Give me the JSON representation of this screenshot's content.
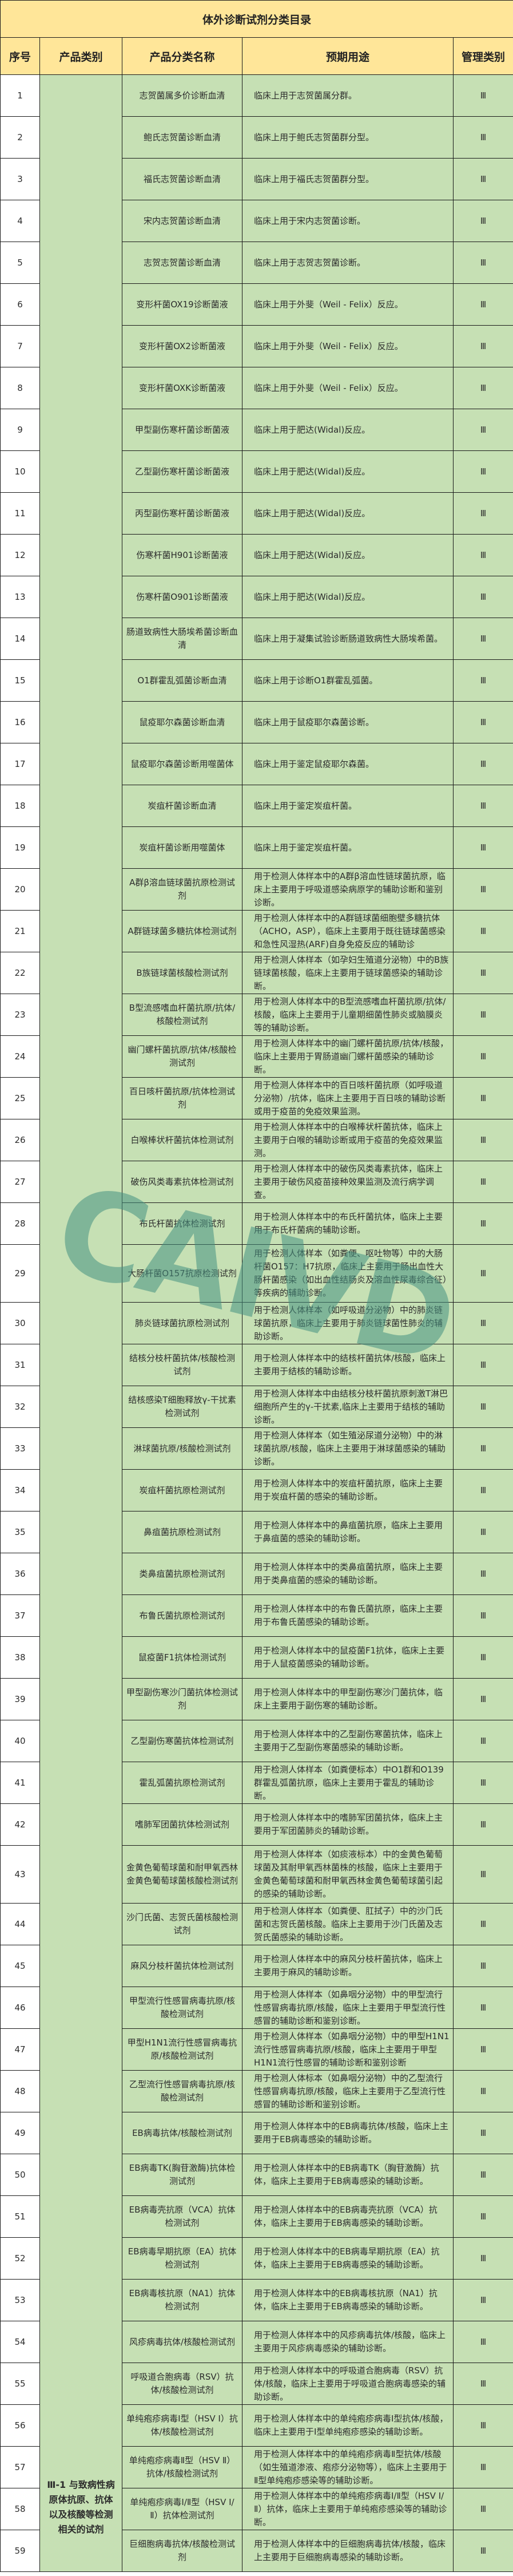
{
  "title": "体外诊断试剂分类目录",
  "headers": {
    "seq": "序号",
    "category": "产品类别",
    "name": "产品分类名称",
    "use": "预期用途",
    "mgmt": "管理类别"
  },
  "category": "Ⅲ-1 与致病性病原体抗原、抗体以及核酸等检测相关的试剂",
  "watermark": "CAIVD",
  "colors": {
    "header_bg": "#FFE699",
    "cell_bg": "#C6E0B4",
    "seq_bg": "#FFFFFF"
  },
  "rows": [
    {
      "seq": "1",
      "name": "志贺菌属多价诊断血清",
      "use": "临床上用于志贺菌属分群。",
      "mgmt": "Ⅲ"
    },
    {
      "seq": "2",
      "name": "鲍氏志贺菌诊断血清",
      "use": "临床上用于鲍氏志贺菌群分型。",
      "mgmt": "Ⅲ"
    },
    {
      "seq": "3",
      "name": "福氏志贺菌诊断血清",
      "use": "临床上用于福氏志贺菌群分型。",
      "mgmt": "Ⅲ"
    },
    {
      "seq": "4",
      "name": "宋内志贺菌诊断血清",
      "use": "临床上用于宋内志贺菌诊断。",
      "mgmt": "Ⅲ"
    },
    {
      "seq": "5",
      "name": "志贺志贺菌诊断血清",
      "use": "临床上用于志贺志贺菌诊断。",
      "mgmt": "Ⅲ"
    },
    {
      "seq": "6",
      "name": "变形杆菌OX19诊断菌液",
      "use": "临床上用于外斐（Weil - Felix）反应。",
      "mgmt": "Ⅲ"
    },
    {
      "seq": "7",
      "name": "变形杆菌OX2诊断菌液",
      "use": "临床上用于外斐（Weil - Felix）反应。",
      "mgmt": "Ⅲ"
    },
    {
      "seq": "8",
      "name": "变形杆菌OXK诊断菌液",
      "use": "临床上用于外斐（Weil - Felix）反应。",
      "mgmt": "Ⅲ"
    },
    {
      "seq": "9",
      "name": "甲型副伤寒杆菌诊断菌液",
      "use": "临床上用于肥达(Widal)反应。",
      "mgmt": "Ⅲ"
    },
    {
      "seq": "10",
      "name": "乙型副伤寒杆菌诊断菌液",
      "use": "临床上用于肥达(Widal)反应。",
      "mgmt": "Ⅲ"
    },
    {
      "seq": "11",
      "name": "丙型副伤寒杆菌诊断菌液",
      "use": "临床上用于肥达(Widal)反应。",
      "mgmt": "Ⅲ"
    },
    {
      "seq": "12",
      "name": "伤寒杆菌H901诊断菌液",
      "use": "临床上用于肥达(Widal)反应。",
      "mgmt": "Ⅲ"
    },
    {
      "seq": "13",
      "name": "伤寒杆菌O901诊断菌液",
      "use": "临床上用于肥达(Widal)反应。",
      "mgmt": "Ⅲ"
    },
    {
      "seq": "14",
      "name": "肠道致病性大肠埃希菌诊断血清",
      "use": "临床上用于凝集试验诊断肠道致病性大肠埃希菌。",
      "mgmt": "Ⅲ"
    },
    {
      "seq": "15",
      "name": "O1群霍乱弧菌诊断血清",
      "use": "临床上用于诊断O1群霍乱弧菌。",
      "mgmt": "Ⅲ"
    },
    {
      "seq": "16",
      "name": "鼠疫耶尔森菌诊断血清",
      "use": "临床上用于鼠疫耶尔森菌诊断。",
      "mgmt": "Ⅲ"
    },
    {
      "seq": "17",
      "name": "鼠疫耶尔森菌诊断用噬菌体",
      "use": "临床上用于鉴定鼠疫耶尔森菌。",
      "mgmt": "Ⅲ"
    },
    {
      "seq": "18",
      "name": "炭疽杆菌诊断血清",
      "use": "临床上用于鉴定炭疽杆菌。",
      "mgmt": "Ⅲ"
    },
    {
      "seq": "19",
      "name": "炭疽杆菌诊断用噬菌体",
      "use": "临床上用于鉴定炭疽杆菌。",
      "mgmt": "Ⅲ"
    },
    {
      "seq": "20",
      "name": "A群β溶血链球菌抗原检测试剂",
      "use": "用于检测人体样本中的A群β溶血性链球菌抗原，临床上主要用于呼吸道感染病原学的辅助诊断和鉴别诊断。",
      "mgmt": "Ⅲ"
    },
    {
      "seq": "21",
      "name": "A群链球菌多糖抗体检测试剂",
      "use": "用于检测人体样本中的A群链球菌细胞壁多糖抗体（ACHO，ASP），临床上主要用于既往链球菌感染和急性风湿热(ARF)自身免疫反应的辅助诊",
      "mgmt": "Ⅲ"
    },
    {
      "seq": "22",
      "name": "B族链球菌核酸检测试剂",
      "use": "用于检测人体样本（如孕妇生殖道分泌物）中的B族链球菌核酸，临床上主要用于链球菌感染的辅助诊断。",
      "mgmt": "Ⅲ"
    },
    {
      "seq": "23",
      "name": "B型流感嗜血杆菌抗原/抗体/核酸检测试剂",
      "use": "用于检测人体样本中的B型流感嗜血杆菌抗原/抗体/核酸，临床上主要用于儿童期细菌性肺炎或脑膜炎等的辅助诊断。",
      "mgmt": "Ⅲ"
    },
    {
      "seq": "24",
      "name": "幽门螺杆菌抗原/抗体/核酸检测试剂",
      "use": "用于检测人体样本中的幽门螺杆菌抗原/抗体/核酸，临床上主要用于胃肠道幽门螺杆菌感染的辅助诊断。",
      "mgmt": "Ⅲ"
    },
    {
      "seq": "25",
      "name": "百日咳杆菌抗原/抗体检测试剂",
      "use": "用于检测人体样本中的百日咳杆菌抗原（如呼吸道分泌物）/抗体，临床上主要用于百日咳的辅助诊断或用于疫苗的免疫效果监测。",
      "mgmt": "Ⅲ"
    },
    {
      "seq": "26",
      "name": "白喉棒状杆菌抗体检测试剂",
      "use": "用于检测人体样本中的白喉棒状杆菌抗体，临床上主要用于白喉的辅助诊断或用于疫苗的免疫效果监测。",
      "mgmt": "Ⅲ"
    },
    {
      "seq": "27",
      "name": "破伤风类毒素抗体检测试剂",
      "use": "用于检测人体样本中的破伤风类毒素抗体，临床上主要用于破伤风疫苗接种效果监测及流行病学调查。",
      "mgmt": "Ⅲ"
    },
    {
      "seq": "28",
      "name": "布氏杆菌抗体检测试剂",
      "use": "用于检测人体样本中的布氏杆菌抗体，临床上主要用于布氏杆菌病的辅助诊断。",
      "mgmt": "Ⅲ"
    },
    {
      "seq": "29",
      "name": "大肠杆菌O157抗原检测试剂",
      "use": "用于检测人体样本（如粪便、呕吐物等）中的大肠杆菌O157：H7抗原，临床上主要用于肠出血性大肠杆菌感染（如出血性结肠炎及溶血性尿毒综合征）等疾病的辅助诊断。",
      "mgmt": "Ⅲ"
    },
    {
      "seq": "30",
      "name": "肺炎链球菌抗原检测试剂",
      "use": "用于检测人体样本（如呼吸道分泌物）中的肺炎链球菌抗原，临床上主要用于肺炎链球菌性肺炎的辅助诊断。",
      "mgmt": "Ⅲ"
    },
    {
      "seq": "31",
      "name": "结核分枝杆菌抗体/核酸检测试剂",
      "use": "用于检测人体样本中的结核杆菌抗体/核酸，临床上主要用于结核的辅助诊断。",
      "mgmt": "Ⅲ"
    },
    {
      "seq": "32",
      "name": "结核感染T细胞释放γ-干扰素检测试剂",
      "use": "用于检测人体样本中由结核分枝杆菌抗原刺激T淋巴细胞所产生的γ-干扰素,临床上主要用于结核的辅助诊断。",
      "mgmt": "Ⅲ"
    },
    {
      "seq": "33",
      "name": "淋球菌抗原/核酸检测试剂",
      "use": "用于检测人体样本（如生殖泌尿道分泌物）中的淋球菌抗原/核酸，临床上主要用于淋球菌感染的辅助诊断。",
      "mgmt": "Ⅲ"
    },
    {
      "seq": "34",
      "name": "炭疽杆菌抗原检测试剂",
      "use": "用于检测人体样本中的炭疽杆菌抗原，临床上主要用于炭疽杆菌的感染的辅助诊断。",
      "mgmt": "Ⅲ"
    },
    {
      "seq": "35",
      "name": "鼻疽菌抗原检测试剂",
      "use": "用于检测人体样本中的鼻疽菌抗原，临床上主要用于鼻疽菌的感染的辅助诊断。",
      "mgmt": "Ⅲ"
    },
    {
      "seq": "36",
      "name": "类鼻疽菌抗原检测试剂",
      "use": "用于检测人体样本中的类鼻疽菌抗原，临床上主要用于类鼻疽菌的感染的辅助诊断。",
      "mgmt": "Ⅲ"
    },
    {
      "seq": "37",
      "name": "布鲁氏菌抗原检测试剂",
      "use": "用于检测人体样本中的布鲁氏菌抗原，临床上主要用于布鲁氏菌感染的辅助诊断。",
      "mgmt": "Ⅲ"
    },
    {
      "seq": "38",
      "name": "鼠疫菌F1抗体检测试剂",
      "use": "用于检测人体样本中的鼠疫菌F1抗体，临床上主要用于人鼠疫菌感染的辅助诊断。",
      "mgmt": "Ⅲ"
    },
    {
      "seq": "39",
      "name": "甲型副伤寒沙门菌抗体检测试剂",
      "use": "用于检测人体样本中的甲型副伤寒沙门菌抗体，临床上主要用于副伤寒的辅助诊断。",
      "mgmt": "Ⅲ"
    },
    {
      "seq": "40",
      "name": "乙型副伤寒菌抗体检测试剂",
      "use": "用于检测人体样本中的乙型副伤寒菌抗体，临床上主要用于乙型副伤寒菌感染的辅助诊断。",
      "mgmt": "Ⅲ"
    },
    {
      "seq": "41",
      "name": "霍乱弧菌抗原检测试剂",
      "use": "用于检测人体样本（如粪便标本）中O1群和O139群霍乱弧菌抗原，临床上主要用于霍乱的辅助诊断。",
      "mgmt": "Ⅲ"
    },
    {
      "seq": "42",
      "name": "嗜肺军团菌抗体检测试剂",
      "use": "用于检测人体样本中的嗜肺军团菌抗体，临床上主要用于军团菌肺炎的辅助诊断。",
      "mgmt": "Ⅲ"
    },
    {
      "seq": "43",
      "name": "金黄色葡萄球菌和耐甲氧西林金黄色葡萄球菌核酸检测试剂",
      "use": "用于检测人体样本（如痰液标本）中的金黄色葡萄球菌及其耐甲氧西林菌株的核酸，临床上主要用于金黄色葡萄球菌和耐甲氧西林金黄色葡萄球菌引起的感染的辅助诊断。",
      "mgmt": "Ⅲ"
    },
    {
      "seq": "44",
      "name": "沙门氏菌、志贺氏菌核酸检测试剂",
      "use": "用于检测人体样本（如粪便、肛拭子）中的沙门氏菌和志贺氏菌核酸。临床上主要用于沙门氏菌及志贺氏菌感染的辅助诊断。",
      "mgmt": "Ⅲ"
    },
    {
      "seq": "45",
      "name": "麻风分枝杆菌抗体检测试剂",
      "use": "用于检测人体样本中的麻风分枝杆菌抗体，临床上主要用于麻风的辅助诊断。",
      "mgmt": "Ⅲ"
    },
    {
      "seq": "46",
      "name": "甲型流行性感冒病毒抗原/核酸检测试剂",
      "use": "用于检测人体样本（如鼻咽分泌物）中的甲型流行性感冒病毒抗原/核酸，临床上主要用于甲型流行性感冒的辅助诊断和鉴别诊断。",
      "mgmt": "Ⅲ"
    },
    {
      "seq": "47",
      "name": "甲型H1N1流行性感冒病毒抗原/核酸检测试剂",
      "use": "用于检测人体样本（如鼻咽分泌物）中的甲型H1N1流行性感冒病毒抗原/核酸，临床上主要用于甲型H1N1流行性感冒的辅助诊断和鉴别诊断",
      "mgmt": "Ⅲ"
    },
    {
      "seq": "48",
      "name": "乙型流行性感冒病毒抗原/核酸检测试剂",
      "use": "用于检测人体标本（如鼻咽分泌物）中的乙型流行性感冒病毒抗原/核酸，临床上主要用于乙型流行性感冒的辅助诊断和鉴别诊断。",
      "mgmt": "Ⅲ"
    },
    {
      "seq": "49",
      "name": "EB病毒抗体/核酸检测试剂",
      "use": "用于检测人体样本中的EB病毒抗体/核酸，临床上主要用于EB病毒感染的辅助诊断。",
      "mgmt": "Ⅲ"
    },
    {
      "seq": "50",
      "name": "EB病毒TK(胸苷激酶)抗体检测试剂",
      "use": "用于检测人体样本中的EB病毒TK（胸苷激酶）抗体，临床上主要用于EB病毒感染的辅助诊断。",
      "mgmt": "Ⅲ"
    },
    {
      "seq": "51",
      "name": "EB病毒壳抗原（VCA）抗体检测试剂",
      "use": "用于检测人体样本中的EB病毒壳抗原（VCA）抗体，临床上主要用于EB病毒感染的辅助诊断。",
      "mgmt": "Ⅲ"
    },
    {
      "seq": "52",
      "name": "EB病毒早期抗原（EA）抗体检测试剂",
      "use": "用于检测人体样本中的EB病毒早期抗原（EA）抗体，临床上主要用于EB病毒感染的辅助诊断。",
      "mgmt": "Ⅲ"
    },
    {
      "seq": "53",
      "name": "EB病毒核抗原（NA1）抗体检测试剂",
      "use": "用于检测人体样本中的EB病毒核抗原（NA1）抗体，临床上主要用于EB病毒感染的辅助诊断。",
      "mgmt": "Ⅲ"
    },
    {
      "seq": "54",
      "name": "风疹病毒抗体/核酸检测试剂",
      "use": "用于检测人体样本中的风疹病毒抗体/核酸，临床上主要用于风疹病毒感染的辅助诊断。",
      "mgmt": "Ⅲ"
    },
    {
      "seq": "55",
      "name": "呼吸道合胞病毒（RSV）抗体/核酸检测试剂",
      "use": "用于检测人体样本中的呼吸道合胞病毒（RSV）抗体/核酸，临床上主要用于呼吸道合胞病毒感染的辅助诊断。",
      "mgmt": "Ⅲ"
    },
    {
      "seq": "56",
      "name": "单纯疱疹病毒I型（HSV I）抗体/核酸检测试剂",
      "use": "用于检测人体样本中的单纯疱疹病毒Ⅰ型抗体/核酸，临床上主要用于I型单纯疱疹感染的辅助诊断。",
      "mgmt": "Ⅲ"
    },
    {
      "seq": "57",
      "name": "单纯疱疹病毒Ⅱ型（HSV Ⅱ）抗体/核酸检测试剂",
      "use": "用于检测人体样本中的单纯疱疹病毒Ⅱ型抗体/核酸（如生殖道渗液、疱疹分泌物等），临床上主要用于Ⅱ型单纯疱疹感染等的辅助诊断。",
      "mgmt": "Ⅲ"
    },
    {
      "seq": "58",
      "name": "单纯疱疹病毒I/Ⅱ型（HSV I/Ⅱ）抗体检测试剂",
      "use": "用于检测人体样本中的单纯疱疹病毒I/Ⅱ型（HSV I/Ⅱ）抗体，临床上主要用于单纯疱疹感染等的辅助诊断。",
      "mgmt": "Ⅲ"
    },
    {
      "seq": "59",
      "name": "巨细胞病毒抗体/核酸检测试剂",
      "use": "用于检测人体样本中的巨细胞病毒抗体/核酸，临床上主要用于巨细胞病毒感染的辅助诊断。",
      "mgmt": "Ⅲ"
    }
  ]
}
